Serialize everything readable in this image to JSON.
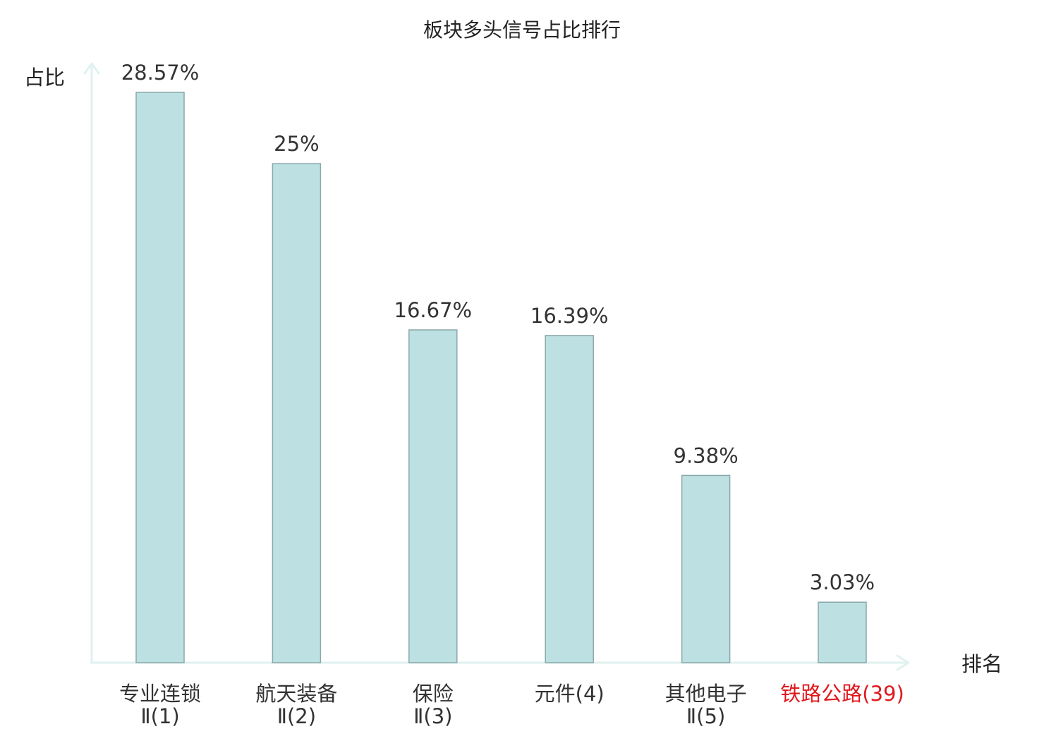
{
  "chart_data": {
    "type": "bar",
    "title": "板块多头信号占比排行",
    "xlabel": "排名",
    "ylabel": "占比",
    "categories": [
      {
        "name": "专业连锁",
        "rank": "Ⅱ(1)",
        "highlight": false
      },
      {
        "name": "航天装备",
        "rank": "Ⅱ(2)",
        "highlight": false
      },
      {
        "name": "保险",
        "rank": "Ⅱ(3)",
        "highlight": false
      },
      {
        "name": "元件",
        "rank": "(4)",
        "highlight": false
      },
      {
        "name": "其他电子",
        "rank": "Ⅱ(5)",
        "highlight": false
      },
      {
        "name": "铁路公路",
        "rank": "(39)",
        "highlight": true
      }
    ],
    "values": [
      28.57,
      25,
      16.67,
      16.39,
      9.38,
      3.03
    ],
    "value_labels": [
      "28.57%",
      "25%",
      "16.67%",
      "16.39%",
      "9.38%",
      "3.03%"
    ],
    "unit": "%",
    "ylim": [
      0,
      28.57
    ],
    "grid": false,
    "legend": "none",
    "colors": {
      "bar_fill": "#bde0e2",
      "bar_stroke": "#8aa8aa",
      "axis": "#e0f2ef",
      "text": "#333333",
      "highlight_text": "#e0191e"
    }
  }
}
